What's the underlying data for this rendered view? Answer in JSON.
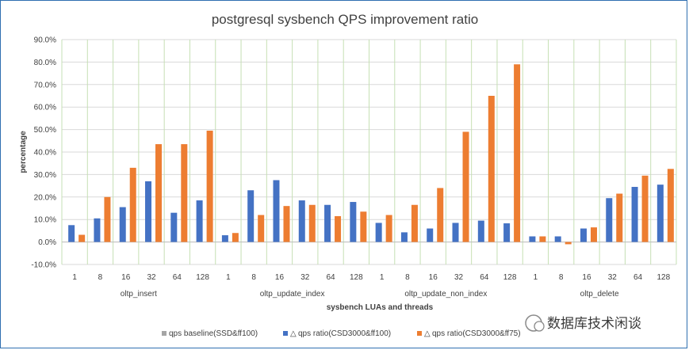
{
  "chart_data": {
    "type": "bar",
    "title": "postgresql sysbench QPS improvement ratio",
    "xlabel": "sysbench LUAs and threads",
    "ylabel": "percentage",
    "ylim": [
      -10,
      90
    ],
    "ytick_step": 10,
    "ytick_labels": [
      "-10.0%",
      "0.0%",
      "10.0%",
      "20.0%",
      "30.0%",
      "40.0%",
      "50.0%",
      "60.0%",
      "70.0%",
      "80.0%",
      "90.0%"
    ],
    "grid": true,
    "groups": [
      {
        "name": "oltp_insert",
        "threads": [
          "1",
          "8",
          "16",
          "32",
          "64",
          "128"
        ]
      },
      {
        "name": "oltp_update_index",
        "threads": [
          "1",
          "8",
          "16",
          "32",
          "64",
          "128"
        ]
      },
      {
        "name": "oltp_update_non_index",
        "threads": [
          "1",
          "8",
          "16",
          "32",
          "64",
          "128"
        ]
      },
      {
        "name": "oltp_delete",
        "threads": [
          "1",
          "8",
          "16",
          "32",
          "64",
          "128"
        ]
      }
    ],
    "series": [
      {
        "name": "qps baseline(SSD&ff100)",
        "legend_marker": "Ⅲ",
        "color": "#a5a5a5",
        "values": [
          0,
          0,
          0,
          0,
          0,
          0,
          0,
          0,
          0,
          0,
          0,
          0,
          0,
          0,
          0,
          0,
          0,
          0,
          0,
          0,
          0,
          0,
          0,
          0
        ]
      },
      {
        "name": "qps ratio(CSD3000&ff100)",
        "legend_marker": "△",
        "color": "#4472c4",
        "values": [
          7.5,
          10.5,
          15.5,
          27,
          13,
          18.5,
          3,
          23,
          27.5,
          18.5,
          16.5,
          17.8,
          8.5,
          4.3,
          6,
          8.5,
          9.5,
          8.3,
          2.5,
          2.5,
          6,
          19.5,
          24.5,
          25.5
        ]
      },
      {
        "name": "qps ratio(CSD3000&ff75)",
        "legend_marker": "△",
        "color": "#ed7d31",
        "values": [
          3.2,
          20,
          33,
          43.5,
          43.5,
          49.5,
          4,
          12,
          16,
          16.5,
          11.5,
          13.5,
          12,
          16.5,
          24,
          49,
          65,
          79,
          2.5,
          -1,
          6.5,
          21.5,
          29.5,
          32.5
        ]
      }
    ],
    "legend_position": "bottom",
    "watermark": "数据库技术闲谈"
  }
}
